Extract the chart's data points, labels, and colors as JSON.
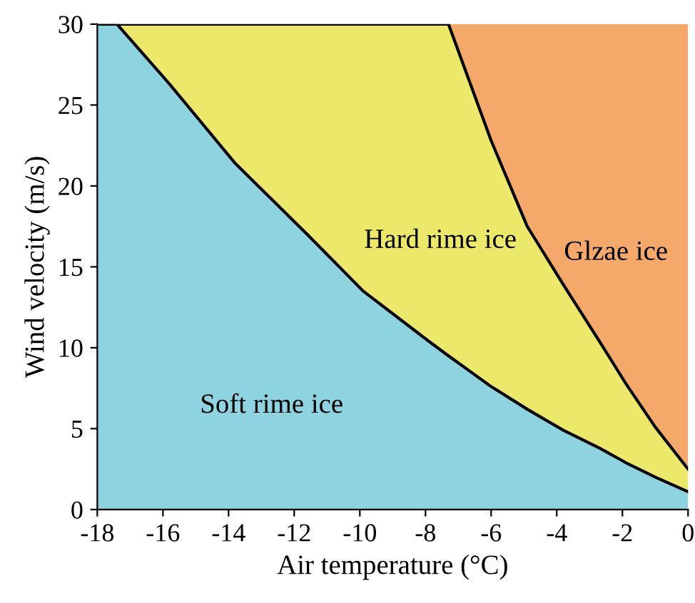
{
  "chart_data": {
    "type": "area",
    "stacked": true,
    "xlabel": "Air temperature (°C)",
    "ylabel": "Wind velocity (m/s)",
    "x": [
      -18,
      -17.4,
      -15.8,
      -13.8,
      -11.6,
      -9.9,
      -7.9,
      -7.3,
      -6,
      -4.9,
      -3.8,
      -2.7,
      -1.9,
      -1,
      0
    ],
    "series": [
      {
        "name": "Soft rime ice",
        "color": "#8dd4e0",
        "values": [
          30,
          30,
          26.3,
          21.4,
          17.0,
          13.5,
          10.4,
          9.5,
          7.6,
          6.2,
          4.9,
          3.8,
          2.9,
          2.0,
          1.1
        ]
      },
      {
        "name": "Hard rime ice",
        "color": "#ece86a",
        "values": [
          0,
          0,
          3.7,
          8.6,
          13.0,
          16.5,
          19.6,
          20.5,
          15.2,
          11.3,
          9.0,
          6.6,
          4.9,
          3.1,
          1.4
        ]
      },
      {
        "name": "Glzae ice",
        "color": "#f4a96a",
        "values": [
          0,
          0,
          0,
          0,
          0,
          0,
          0,
          0,
          7.2,
          12.5,
          16.1,
          19.6,
          22.2,
          24.9,
          27.5
        ]
      }
    ],
    "xlim": [
      -18,
      0
    ],
    "ylim": [
      0,
      30
    ],
    "xticks": [
      -18,
      -16,
      -14,
      -12,
      -10,
      -8,
      -6,
      -4,
      -2,
      0
    ],
    "yticks": [
      0,
      5,
      10,
      15,
      20,
      25,
      30
    ],
    "grid": false
  }
}
